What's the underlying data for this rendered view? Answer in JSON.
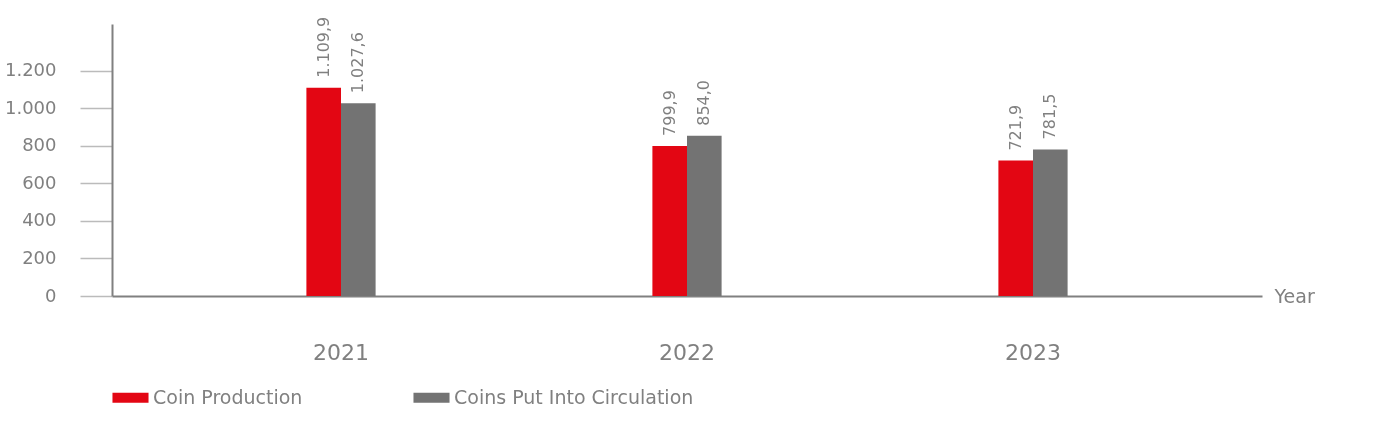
{
  "chart_data": {
    "type": "bar",
    "xlabel": "Year",
    "categories": [
      "2021",
      "2022",
      "2023"
    ],
    "series": [
      {
        "name": "Coin Production",
        "color": "#e30613",
        "values": [
          1109.9,
          799.9,
          721.9
        ],
        "value_labels": [
          "1.109,9",
          "799,9",
          "721,9"
        ]
      },
      {
        "name": "Coins Put Into Circulation",
        "color": "#737373",
        "values": [
          1027.6,
          854.0,
          781.5
        ],
        "value_labels": [
          "1.027,6",
          "854,0",
          "781,5"
        ]
      }
    ],
    "ylim": [
      0,
      1450
    ],
    "yticks": [
      0,
      200,
      400,
      600,
      800,
      {
        "value": 1000,
        "label": "1.000"
      },
      {
        "value": 1200,
        "label": "1.200"
      }
    ],
    "grid": false,
    "legend": "bottom"
  }
}
